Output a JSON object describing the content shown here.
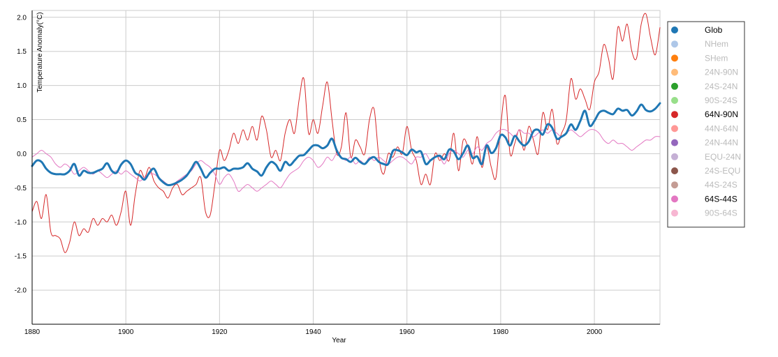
{
  "chart_data": {
    "type": "line",
    "xlabel": "Year",
    "ylabel": "Temperature Anomaly(°C)",
    "xlim": [
      1880,
      2014
    ],
    "ylim": [
      -2.5,
      2.1
    ],
    "x_ticks": [
      "1880",
      "1900",
      "1920",
      "1940",
      "1960",
      "1980",
      "2000"
    ],
    "x_tick_values": [
      1880,
      1900,
      1920,
      1940,
      1960,
      1980,
      2000
    ],
    "y_ticks": [
      "2.0",
      "1.5",
      "1.0",
      "0.5",
      "0.0",
      "-0.5",
      "-1.0",
      "-1.5",
      "-2.0"
    ],
    "y_tick_values": [
      2.0,
      1.5,
      1.0,
      0.5,
      0.0,
      -0.5,
      -1.0,
      -1.5,
      -2.0
    ],
    "grid": true,
    "legend_position": "right",
    "legend": [
      {
        "name": "Glob",
        "color": "#1f77b4",
        "active": true
      },
      {
        "name": "NHem",
        "color": "#aec7e8",
        "active": false
      },
      {
        "name": "SHem",
        "color": "#ff7f0e",
        "active": false
      },
      {
        "name": "24N-90N",
        "color": "#ffbb78",
        "active": false
      },
      {
        "name": "24S-24N",
        "color": "#2ca02c",
        "active": false
      },
      {
        "name": "90S-24S",
        "color": "#98df8a",
        "active": false
      },
      {
        "name": "64N-90N",
        "color": "#d62728",
        "active": true
      },
      {
        "name": "44N-64N",
        "color": "#ff9896",
        "active": false
      },
      {
        "name": "24N-44N",
        "color": "#9467bd",
        "active": false
      },
      {
        "name": "EQU-24N",
        "color": "#c5b0d5",
        "active": false
      },
      {
        "name": "24S-EQU",
        "color": "#8c564b",
        "active": false
      },
      {
        "name": "44S-24S",
        "color": "#c49c94",
        "active": false
      },
      {
        "name": "64S-44S",
        "color": "#e377c2",
        "active": true
      },
      {
        "name": "90S-64S",
        "color": "#f7b6d2",
        "active": false
      }
    ],
    "series": [
      {
        "name": "64N-90N",
        "color": "#d62728",
        "width": 1,
        "x": [
          1880,
          1881,
          1882,
          1883,
          1884,
          1885,
          1886,
          1887,
          1888,
          1889,
          1890,
          1891,
          1892,
          1893,
          1894,
          1895,
          1896,
          1897,
          1898,
          1899,
          1900,
          1901,
          1902,
          1903,
          1904,
          1905,
          1906,
          1907,
          1908,
          1909,
          1910,
          1911,
          1912,
          1913,
          1914,
          1915,
          1916,
          1917,
          1918,
          1919,
          1920,
          1921,
          1922,
          1923,
          1924,
          1925,
          1926,
          1927,
          1928,
          1929,
          1930,
          1931,
          1932,
          1933,
          1934,
          1935,
          1936,
          1937,
          1938,
          1939,
          1940,
          1941,
          1942,
          1943,
          1944,
          1945,
          1946,
          1947,
          1948,
          1949,
          1950,
          1951,
          1952,
          1953,
          1954,
          1955,
          1956,
          1957,
          1958,
          1959,
          1960,
          1961,
          1962,
          1963,
          1964,
          1965,
          1966,
          1967,
          1968,
          1969,
          1970,
          1971,
          1972,
          1973,
          1974,
          1975,
          1976,
          1977,
          1978,
          1979,
          1980,
          1981,
          1982,
          1983,
          1984,
          1985,
          1986,
          1987,
          1988,
          1989,
          1990,
          1991,
          1992,
          1993,
          1994,
          1995,
          1996,
          1997,
          1998,
          1999,
          2000,
          2001,
          2002,
          2003,
          2004,
          2005,
          2006,
          2007,
          2008,
          2009,
          2010,
          2011,
          2012,
          2013,
          2014
        ],
        "values": [
          -0.85,
          -0.7,
          -0.95,
          -0.6,
          -1.15,
          -1.2,
          -1.25,
          -1.45,
          -1.3,
          -1.0,
          -1.2,
          -1.1,
          -1.15,
          -0.95,
          -1.05,
          -0.95,
          -1.0,
          -0.9,
          -1.05,
          -0.85,
          -0.55,
          -1.05,
          -0.6,
          -0.25,
          -0.35,
          -0.2,
          -0.4,
          -0.5,
          -0.55,
          -0.65,
          -0.5,
          -0.45,
          -0.6,
          -0.55,
          -0.5,
          -0.45,
          -0.35,
          -0.85,
          -0.9,
          -0.45,
          0.05,
          -0.1,
          0.05,
          0.3,
          0.15,
          0.35,
          0.2,
          0.4,
          0.2,
          0.55,
          0.35,
          -0.05,
          0.05,
          -0.1,
          0.3,
          0.5,
          0.3,
          0.8,
          1.1,
          0.3,
          0.5,
          0.3,
          0.7,
          1.05,
          0.5,
          0.0,
          0.1,
          0.6,
          -0.05,
          0.2,
          0.1,
          0.0,
          0.5,
          0.65,
          -0.05,
          -0.3,
          0.0,
          -0.05,
          0.1,
          0.0,
          0.4,
          0.05,
          -0.1,
          -0.45,
          -0.3,
          -0.45,
          0.0,
          -0.1,
          0.0,
          -0.1,
          0.3,
          -0.25,
          0.2,
          0.1,
          -0.15,
          0.25,
          -0.2,
          0.1,
          -0.2,
          -0.35,
          0.4,
          0.85,
          0.0,
          0.15,
          0.35,
          0.05,
          0.4,
          0.2,
          0.0,
          0.6,
          0.35,
          0.65,
          0.15,
          0.3,
          0.5,
          1.1,
          0.8,
          0.95,
          0.8,
          0.65,
          1.05,
          1.2,
          1.6,
          1.4,
          1.1,
          1.85,
          1.65,
          1.9,
          1.5,
          1.4,
          1.9,
          2.05,
          1.7,
          1.45,
          1.85
        ]
      },
      {
        "name": "64S-44S",
        "color": "#e377c2",
        "width": 1,
        "x": [
          1880,
          1881,
          1882,
          1883,
          1884,
          1885,
          1886,
          1887,
          1888,
          1889,
          1890,
          1891,
          1892,
          1893,
          1894,
          1895,
          1896,
          1897,
          1898,
          1899,
          1900,
          1901,
          1902,
          1903,
          1904,
          1905,
          1906,
          1907,
          1908,
          1909,
          1910,
          1911,
          1912,
          1913,
          1914,
          1915,
          1916,
          1917,
          1918,
          1919,
          1920,
          1921,
          1922,
          1923,
          1924,
          1925,
          1926,
          1927,
          1928,
          1929,
          1930,
          1931,
          1932,
          1933,
          1934,
          1935,
          1936,
          1937,
          1938,
          1939,
          1940,
          1941,
          1942,
          1943,
          1944,
          1945,
          1946,
          1947,
          1948,
          1949,
          1950,
          1951,
          1952,
          1953,
          1954,
          1955,
          1956,
          1957,
          1958,
          1959,
          1960,
          1961,
          1962,
          1963,
          1964,
          1965,
          1966,
          1967,
          1968,
          1969,
          1970,
          1971,
          1972,
          1973,
          1974,
          1975,
          1976,
          1977,
          1978,
          1979,
          1980,
          1981,
          1982,
          1983,
          1984,
          1985,
          1986,
          1987,
          1988,
          1989,
          1990,
          1991,
          1992,
          1993,
          1994,
          1995,
          1996,
          1997,
          1998,
          1999,
          2000,
          2001,
          2002,
          2003,
          2004,
          2005,
          2006,
          2007,
          2008,
          2009,
          2010,
          2011,
          2012,
          2013,
          2014
        ],
        "values": [
          -0.05,
          0.0,
          0.05,
          0.0,
          -0.05,
          -0.15,
          -0.2,
          -0.15,
          -0.2,
          -0.3,
          -0.25,
          -0.2,
          -0.25,
          -0.3,
          -0.25,
          -0.3,
          -0.35,
          -0.3,
          -0.25,
          -0.3,
          -0.25,
          -0.3,
          -0.35,
          -0.4,
          -0.35,
          -0.3,
          -0.3,
          -0.35,
          -0.4,
          -0.45,
          -0.45,
          -0.4,
          -0.35,
          -0.3,
          -0.25,
          -0.15,
          -0.1,
          -0.15,
          -0.2,
          -0.3,
          -0.45,
          -0.35,
          -0.3,
          -0.4,
          -0.55,
          -0.5,
          -0.45,
          -0.5,
          -0.55,
          -0.5,
          -0.45,
          -0.4,
          -0.45,
          -0.5,
          -0.4,
          -0.3,
          -0.25,
          -0.2,
          -0.1,
          -0.05,
          -0.1,
          -0.2,
          -0.15,
          -0.05,
          -0.1,
          0.0,
          -0.05,
          -0.1,
          -0.05,
          -0.15,
          -0.1,
          -0.15,
          -0.05,
          -0.1,
          -0.05,
          -0.1,
          -0.15,
          -0.1,
          -0.05,
          -0.05,
          -0.1,
          -0.15,
          -0.05,
          -0.05,
          0.0,
          -0.1,
          -0.05,
          -0.05,
          -0.15,
          0.0,
          0.05,
          0.0,
          -0.05,
          0.05,
          0.0,
          0.1,
          0.05,
          0.15,
          0.2,
          0.3,
          0.35,
          0.35,
          0.3,
          0.25,
          0.35,
          0.3,
          0.3,
          0.25,
          0.3,
          0.35,
          0.3,
          0.35,
          0.3,
          0.25,
          0.3,
          0.35,
          0.3,
          0.25,
          0.3,
          0.35,
          0.35,
          0.3,
          0.2,
          0.15,
          0.2,
          0.15,
          0.15,
          0.1,
          0.05,
          0.1,
          0.15,
          0.2,
          0.2,
          0.25,
          0.25
        ]
      },
      {
        "name": "Glob",
        "color": "#1f77b4",
        "width": 3,
        "x": [
          1880,
          1881,
          1882,
          1883,
          1884,
          1885,
          1886,
          1887,
          1888,
          1889,
          1890,
          1891,
          1892,
          1893,
          1894,
          1895,
          1896,
          1897,
          1898,
          1899,
          1900,
          1901,
          1902,
          1903,
          1904,
          1905,
          1906,
          1907,
          1908,
          1909,
          1910,
          1911,
          1912,
          1913,
          1914,
          1915,
          1916,
          1917,
          1918,
          1919,
          1920,
          1921,
          1922,
          1923,
          1924,
          1925,
          1926,
          1927,
          1928,
          1929,
          1930,
          1931,
          1932,
          1933,
          1934,
          1935,
          1936,
          1937,
          1938,
          1939,
          1940,
          1941,
          1942,
          1943,
          1944,
          1945,
          1946,
          1947,
          1948,
          1949,
          1950,
          1951,
          1952,
          1953,
          1954,
          1955,
          1956,
          1957,
          1958,
          1959,
          1960,
          1961,
          1962,
          1963,
          1964,
          1965,
          1966,
          1967,
          1968,
          1969,
          1970,
          1971,
          1972,
          1973,
          1974,
          1975,
          1976,
          1977,
          1978,
          1979,
          1980,
          1981,
          1982,
          1983,
          1984,
          1985,
          1986,
          1987,
          1988,
          1989,
          1990,
          1991,
          1992,
          1993,
          1994,
          1995,
          1996,
          1997,
          1998,
          1999,
          2000,
          2001,
          2002,
          2003,
          2004,
          2005,
          2006,
          2007,
          2008,
          2009,
          2010,
          2011,
          2012,
          2013,
          2014
        ],
        "values": [
          -0.18,
          -0.1,
          -0.12,
          -0.22,
          -0.28,
          -0.3,
          -0.3,
          -0.3,
          -0.25,
          -0.15,
          -0.32,
          -0.25,
          -0.28,
          -0.28,
          -0.25,
          -0.22,
          -0.14,
          -0.25,
          -0.28,
          -0.16,
          -0.1,
          -0.15,
          -0.28,
          -0.32,
          -0.38,
          -0.28,
          -0.22,
          -0.35,
          -0.42,
          -0.46,
          -0.45,
          -0.42,
          -0.38,
          -0.32,
          -0.22,
          -0.12,
          -0.22,
          -0.35,
          -0.28,
          -0.22,
          -0.22,
          -0.2,
          -0.25,
          -0.22,
          -0.22,
          -0.2,
          -0.14,
          -0.22,
          -0.26,
          -0.32,
          -0.2,
          -0.12,
          -0.16,
          -0.25,
          -0.12,
          -0.17,
          -0.1,
          -0.03,
          -0.02,
          0.05,
          0.12,
          0.12,
          0.08,
          0.12,
          0.22,
          0.05,
          -0.06,
          -0.08,
          -0.12,
          -0.06,
          -0.12,
          -0.15,
          -0.08,
          -0.05,
          -0.12,
          -0.15,
          -0.15,
          0.04,
          0.05,
          0.02,
          -0.02,
          0.06,
          0.02,
          0.03,
          -0.15,
          -0.1,
          -0.05,
          -0.03,
          -0.08,
          0.06,
          0.03,
          -0.08,
          0.01,
          0.12,
          -0.06,
          -0.04,
          -0.15,
          0.12,
          0.01,
          0.08,
          0.27,
          0.24,
          0.12,
          0.26,
          0.18,
          0.12,
          0.18,
          0.33,
          0.35,
          0.28,
          0.43,
          0.38,
          0.22,
          0.25,
          0.3,
          0.43,
          0.35,
          0.48,
          0.63,
          0.41,
          0.48,
          0.6,
          0.63,
          0.6,
          0.58,
          0.66,
          0.63,
          0.64,
          0.56,
          0.62,
          0.72,
          0.64,
          0.62,
          0.66,
          0.74
        ]
      }
    ]
  }
}
